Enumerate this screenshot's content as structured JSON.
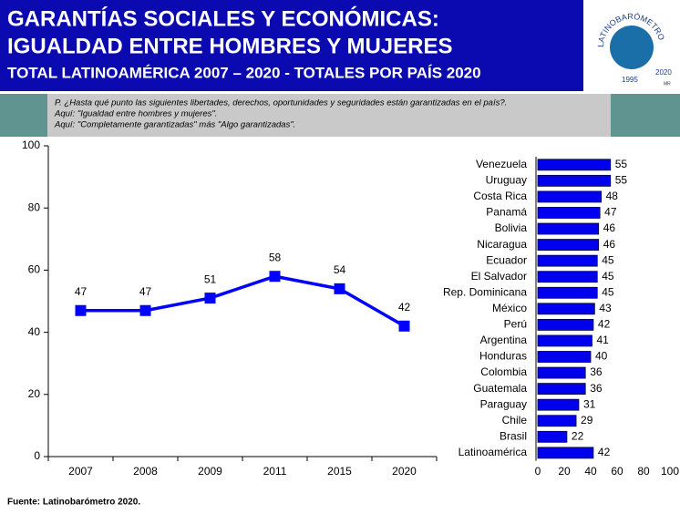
{
  "header": {
    "title_lines": [
      "GARANTÍAS SOCIALES Y ECONÓMICAS:",
      "IGUALDAD ENTRE HOMBRES Y MUJERES"
    ],
    "subtitle": "TOTAL LATINOAMÉRICA 2007 – 2020  - TOTALES POR PAÍS 2020"
  },
  "logo": {
    "name": "LATINOBARÓMETRO",
    "start": "1995",
    "end": "2020",
    "mark": "MR"
  },
  "question": [
    "P. ¿Hasta qué punto las siguientes libertades, derechos, oportunidades y seguridades están garantizadas en el país?.",
    "Aquí: \"Igualdad entre hombres y mujeres\".",
    "Aquí: \"Completamente garantizadas\" más \"Algo garantizadas\"."
  ],
  "source": "Fuente: Latinobarómetro 2020.",
  "chart_data": [
    {
      "type": "line",
      "categories": [
        "2007",
        "2008",
        "2009",
        "2011",
        "2015",
        "2020"
      ],
      "values": [
        47,
        47,
        51,
        58,
        54,
        42
      ],
      "color": "#0000ff",
      "ylim": [
        0,
        100
      ],
      "yticks": [
        0,
        20,
        40,
        60,
        80,
        100
      ]
    },
    {
      "type": "bar",
      "orientation": "horizontal",
      "categories": [
        "Venezuela",
        "Uruguay",
        "Costa Rica",
        "Panamá",
        "Bolivia",
        "Nicaragua",
        "Ecuador",
        "El Salvador",
        "Rep. Dominicana",
        "México",
        "Perú",
        "Argentina",
        "Honduras",
        "Colombia",
        "Guatemala",
        "Paraguay",
        "Chile",
        "Brasil",
        "Latinoamérica"
      ],
      "values": [
        55,
        55,
        48,
        47,
        46,
        46,
        45,
        45,
        45,
        43,
        42,
        41,
        40,
        36,
        36,
        31,
        29,
        22,
        42
      ],
      "color": "#0000ee",
      "xlim": [
        0,
        100
      ],
      "xticks": [
        0,
        20,
        40,
        60,
        80,
        100
      ]
    }
  ]
}
